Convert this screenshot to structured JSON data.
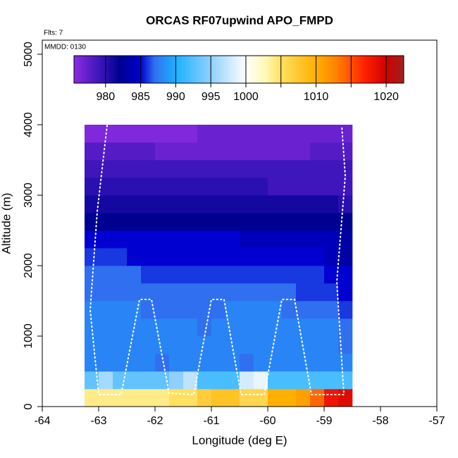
{
  "chart_data": {
    "type": "heatmap",
    "title": "ORCAS RF07upwind APO_FMPD",
    "notes": [
      "Flts: 7",
      "MMDD: 0130"
    ],
    "xlabel": "Longitude (deg E)",
    "ylabel": "Altitude (m)",
    "xlim": [
      -64,
      -57
    ],
    "xticks": [
      -64,
      -63,
      -62,
      -61,
      -60,
      -59,
      -58,
      -57
    ],
    "ylim": [
      0,
      5200
    ],
    "yticks": [
      0,
      1000,
      2000,
      3000,
      4000,
      5000
    ],
    "x_edges": [
      -63.25,
      -63,
      -62.75,
      -62.5,
      -62.25,
      -62,
      -61.75,
      -61.5,
      -61.25,
      -61,
      -60.75,
      -60.5,
      -60.25,
      -60,
      -59.75,
      -59.5,
      -59.25,
      -59,
      -58.75,
      -58.5
    ],
    "y_edges": [
      0,
      250,
      500,
      750,
      1000,
      1250,
      1500,
      1750,
      2000,
      2250,
      2500,
      2750,
      3000,
      3250,
      3500,
      3750,
      4000
    ],
    "z": [
      [
        1004,
        1004,
        1004,
        1004,
        1004,
        1004,
        1005,
        1005,
        1007,
        1008,
        1008,
        1006,
        1006,
        1010,
        1010,
        1011,
        1014,
        1018,
        1019
      ],
      [
        993,
        996,
        993,
        993,
        993,
        993,
        995,
        997,
        992,
        992,
        992,
        998,
        999,
        992,
        992,
        992,
        992,
        992,
        992
      ],
      [
        988,
        988,
        988,
        988,
        988,
        987,
        988,
        988,
        988,
        988,
        988,
        987,
        988,
        988,
        988,
        988,
        988,
        988,
        988
      ],
      [
        988,
        988,
        988,
        988,
        988,
        988,
        988,
        988,
        988,
        988,
        988,
        988,
        988,
        988,
        988,
        988,
        988,
        988,
        987
      ],
      [
        988,
        988,
        988,
        988,
        988,
        988,
        988,
        988,
        987,
        988,
        988,
        988,
        988,
        988,
        988,
        988,
        988,
        988,
        987
      ],
      [
        988,
        988,
        988,
        988,
        987,
        987,
        987,
        987,
        987,
        987,
        988,
        988,
        988,
        988,
        987,
        987,
        987,
        987,
        986
      ],
      [
        987,
        987,
        987,
        987,
        987,
        987,
        987,
        987,
        987,
        987,
        987,
        987,
        987,
        987,
        987,
        986,
        986,
        986,
        985
      ],
      [
        987,
        987,
        987,
        987,
        986,
        986,
        986,
        986,
        986,
        986,
        986,
        986,
        986,
        986,
        986,
        986,
        986,
        985,
        985
      ],
      [
        986,
        986,
        986,
        985,
        985,
        985,
        985,
        985,
        985,
        985,
        985,
        985,
        985,
        985,
        985,
        985,
        985,
        984,
        983
      ],
      [
        985,
        985,
        985,
        985,
        985,
        985,
        985,
        985,
        985,
        985,
        985,
        984,
        984,
        984,
        984,
        984,
        984,
        984,
        983
      ],
      [
        982,
        982,
        982,
        982,
        982,
        982,
        982,
        982,
        982,
        982,
        982,
        982,
        982,
        982,
        982,
        982,
        982,
        982,
        982
      ],
      [
        981,
        981,
        981,
        981,
        981,
        981,
        981,
        981,
        981,
        981,
        981,
        981,
        981,
        981,
        981,
        981,
        981,
        981,
        980
      ],
      [
        980,
        980,
        980,
        980,
        980,
        980,
        980,
        980,
        980,
        980,
        980,
        980,
        980,
        979,
        979,
        979,
        979,
        979,
        979
      ],
      [
        979,
        979,
        979,
        979,
        979,
        979,
        979,
        979,
        979,
        979,
        979,
        979,
        979,
        979,
        979,
        979,
        979,
        979,
        979
      ],
      [
        978,
        978,
        978,
        978,
        978,
        977,
        977,
        977,
        977,
        977,
        977,
        977,
        977,
        977,
        977,
        977,
        978,
        978,
        978
      ],
      [
        976,
        976,
        976,
        976,
        976,
        976,
        976,
        976,
        977,
        977,
        977,
        977,
        977,
        977,
        977,
        977,
        977,
        977,
        977
      ]
    ],
    "colorscale": [
      [
        975.5,
        "#8a2be2"
      ],
      [
        980,
        "#2a10b0"
      ],
      [
        982,
        "#000090"
      ],
      [
        985,
        "#0000d0"
      ],
      [
        987,
        "#3070f0"
      ],
      [
        990,
        "#1cb0ff"
      ],
      [
        995,
        "#90d0ff"
      ],
      [
        1000,
        "#ffffff"
      ],
      [
        1003,
        "#fff8b0"
      ],
      [
        1005,
        "#ffe060"
      ],
      [
        1010,
        "#ffb000"
      ],
      [
        1013,
        "#ff8000"
      ],
      [
        1017,
        "#ff2000"
      ],
      [
        1020,
        "#d00000"
      ],
      [
        1022.5,
        "#a02020"
      ]
    ],
    "colorbar_lim": [
      975.5,
      1022.5
    ],
    "colorbar_breaks": [
      980,
      985,
      990,
      995,
      1000,
      1005,
      1010,
      1015,
      1020
    ],
    "colorbar_ticks": [
      980,
      985,
      990,
      995,
      1000,
      1010,
      1020
    ],
    "track": {
      "color": "#ffffff",
      "x": [
        -62.85,
        -63.025,
        -63.15,
        -63,
        -62.6,
        -62.275,
        -62.0625,
        -61.75,
        -61.3125,
        -61,
        -60.775,
        -60.475,
        -60.0625,
        -59.75,
        -59.525,
        -59.225,
        -58.65,
        -58.775,
        -58.625,
        -58.6875
      ],
      "y": [
        3990,
        2770,
        1370,
        170,
        170,
        1520,
        1520,
        190,
        170,
        1520,
        1520,
        170,
        170,
        1520,
        1520,
        170,
        170,
        1770,
        3270,
        3990
      ]
    }
  }
}
